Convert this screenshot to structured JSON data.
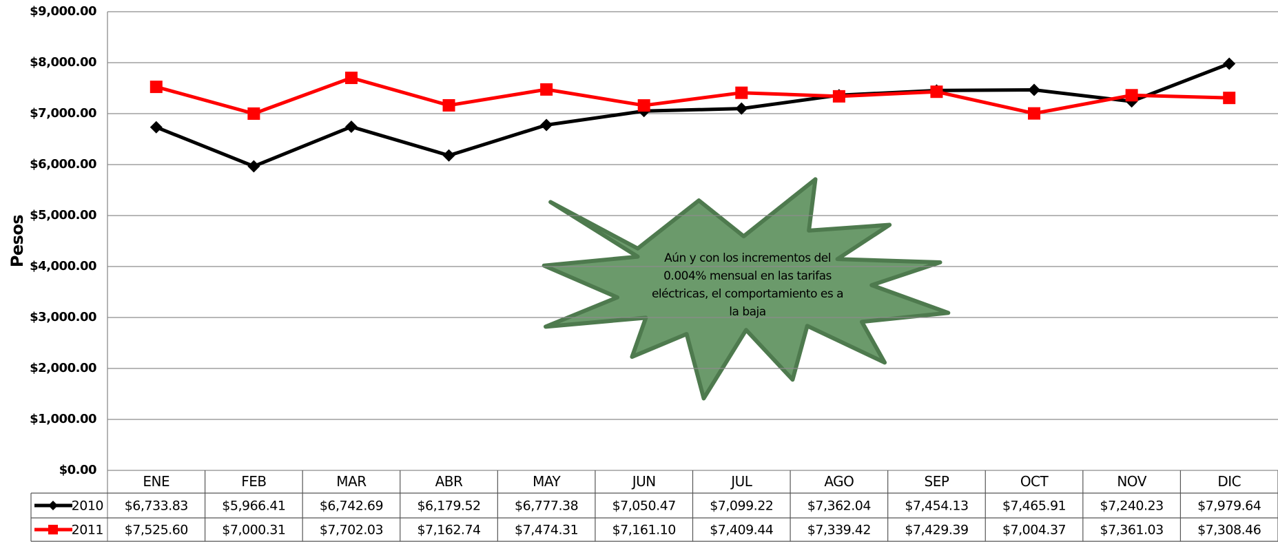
{
  "chart_data": {
    "type": "line",
    "y_label": "Pesos",
    "annotation": "Aún  y con los incrementos del 0.004% mensual en las tarifas eléctricas, el comportamiento es a la baja",
    "categories": [
      "ENE",
      "FEB",
      "MAR",
      "ABR",
      "MAY",
      "JUN",
      "JUL",
      "AGO",
      "SEP",
      "OCT",
      "NOV",
      "DIC"
    ],
    "series": [
      {
        "name": "2010",
        "color": "#000000",
        "marker": "diamond",
        "values": [
          6733.83,
          5966.41,
          6742.69,
          6179.52,
          6777.38,
          7050.47,
          7099.22,
          7362.04,
          7454.13,
          7465.91,
          7240.23,
          7979.64
        ],
        "value_labels": [
          "$6,733.83",
          "$5,966.41",
          "$6,742.69",
          "$6,179.52",
          "$6,777.38",
          "$7,050.47",
          "$7,099.22",
          "$7,362.04",
          "$7,454.13",
          "$7,465.91",
          "$7,240.23",
          "$7,979.64"
        ]
      },
      {
        "name": "2011",
        "color": "#ff0000",
        "marker": "square",
        "values": [
          7525.6,
          7000.31,
          7702.03,
          7162.74,
          7474.31,
          7161.1,
          7409.44,
          7339.42,
          7429.39,
          7004.37,
          7361.03,
          7308.46
        ],
        "value_labels": [
          "$7,525.60",
          "$7,000.31",
          "$7,702.03",
          "$7,162.74",
          "$7,474.31",
          "$7,161.10",
          "$7,409.44",
          "$7,339.42",
          "$7,429.39",
          "$7,004.37",
          "$7,361.03",
          "$7,308.46"
        ]
      }
    ],
    "ylim": [
      0,
      9000
    ],
    "yticks": [
      {
        "value": 0,
        "label": "$0.00"
      },
      {
        "value": 1000,
        "label": "$1,000.00"
      },
      {
        "value": 2000,
        "label": "$2,000.00"
      },
      {
        "value": 3000,
        "label": "$3,000.00"
      },
      {
        "value": 4000,
        "label": "$4,000.00"
      },
      {
        "value": 5000,
        "label": "$5,000.00"
      },
      {
        "value": 6000,
        "label": "$6,000.00"
      },
      {
        "value": 7000,
        "label": "$7,000.00"
      },
      {
        "value": 8000,
        "label": "$8,000.00"
      },
      {
        "value": 9000,
        "label": "$9,000.00"
      }
    ],
    "grid": true
  }
}
